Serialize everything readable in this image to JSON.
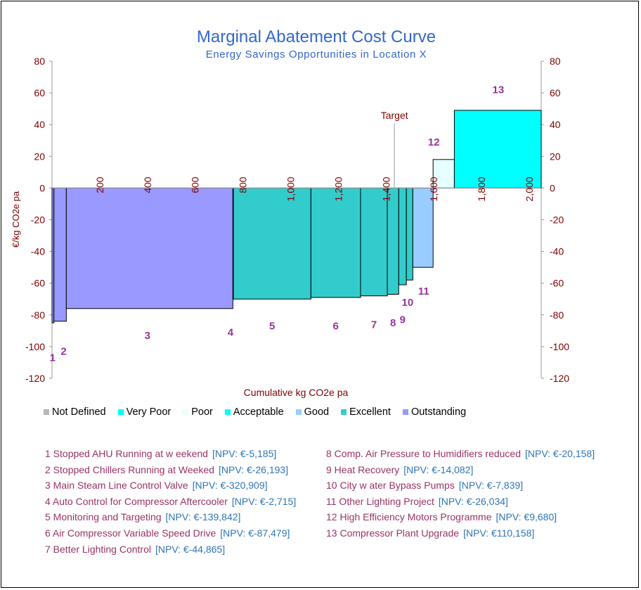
{
  "chart_data": {
    "type": "bar",
    "title": "Marginal Abatement Cost Curve",
    "subtitle": "Energy Savings Opportunities in Location X",
    "xlabel": "Cumulative kg CO2e pa",
    "ylabel": "€/kg CO2e pa",
    "ylim": [
      -120,
      80
    ],
    "xlim": [
      0,
      2050
    ],
    "y_ticks": [
      "80",
      "60",
      "40",
      "20",
      "0",
      "-20",
      "-40",
      "-60",
      "-80",
      "-100",
      "-120"
    ],
    "y_tick_values": [
      80,
      60,
      40,
      20,
      0,
      -20,
      -40,
      -60,
      -80,
      -100,
      -120
    ],
    "x_ticks": [
      "200",
      "400",
      "600",
      "800",
      "1,000",
      "1,200",
      "1,400",
      "1,600",
      "1,800",
      "2,000"
    ],
    "x_tick_values": [
      200,
      400,
      600,
      800,
      1000,
      1200,
      1400,
      1600,
      1800,
      2000
    ],
    "target": {
      "label": "Target",
      "x": 1435
    },
    "bars": [
      {
        "id": "1",
        "start": 0,
        "end": 8,
        "value": -85,
        "category": "Outstanding"
      },
      {
        "id": "2",
        "start": 8,
        "end": 60,
        "value": -84,
        "category": "Outstanding"
      },
      {
        "id": "3",
        "start": 60,
        "end": 758,
        "value": -76,
        "category": "Outstanding"
      },
      {
        "id": "4",
        "start": 758,
        "end": 760,
        "value": -70,
        "category": "Excellent"
      },
      {
        "id": "5",
        "start": 760,
        "end": 1085,
        "value": -70,
        "category": "Excellent"
      },
      {
        "id": "6",
        "start": 1085,
        "end": 1293,
        "value": -69,
        "category": "Excellent"
      },
      {
        "id": "7",
        "start": 1293,
        "end": 1405,
        "value": -68,
        "category": "Excellent"
      },
      {
        "id": "8",
        "start": 1405,
        "end": 1453,
        "value": -67,
        "category": "Excellent"
      },
      {
        "id": "9",
        "start": 1453,
        "end": 1485,
        "value": -61,
        "category": "Excellent"
      },
      {
        "id": "10",
        "start": 1485,
        "end": 1512,
        "value": -58,
        "category": "Excellent"
      },
      {
        "id": "11",
        "start": 1512,
        "end": 1597,
        "value": -50,
        "category": "Good"
      },
      {
        "id": "12",
        "start": 1597,
        "end": 1686,
        "value": 18,
        "category": "Poor"
      },
      {
        "id": "13",
        "start": 1686,
        "end": 2050,
        "value": 49,
        "category": "Acceptable"
      }
    ],
    "legend": [
      {
        "name": "Not Defined",
        "color": "#B7B7B7"
      },
      {
        "name": "Very Poor",
        "color": "#00FFFF"
      },
      {
        "name": "Poor",
        "color": "#E6FFFF"
      },
      {
        "name": "Acceptable",
        "color": "#00FFFF"
      },
      {
        "name": "Good",
        "color": "#99CCFF"
      },
      {
        "name": "Excellent",
        "color": "#33CCCC"
      },
      {
        "name": "Outstanding",
        "color": "#9999FF"
      }
    ],
    "colors": {
      "Outstanding": "#9999FF",
      "Excellent": "#33CCCC",
      "Good": "#99CCFF",
      "Poor": "#E6FFFF",
      "Acceptable": "#00FFFF",
      "title": "#3366CC",
      "axis_text": "#800000",
      "bar_label": "#993399"
    }
  },
  "projects": [
    {
      "label": "1 Stopped AHU Running at w eekend",
      "npv": "[NPV: €-5,185]"
    },
    {
      "label": "2 Stopped Chillers Running at Weeked",
      "npv": "[NPV: €-26,193]"
    },
    {
      "label": "3 Main Steam Line Control Valve",
      "npv": "[NPV: €-320,909]"
    },
    {
      "label": "4 Auto Control for Compressor Aftercooler",
      "npv": "[NPV: €-2,715]"
    },
    {
      "label": "5 Monitoring and Targeting",
      "npv": "[NPV: €-139,842]"
    },
    {
      "label": "6 Air Compressor Variable Speed Drive",
      "npv": "[NPV: €-87,479]"
    },
    {
      "label": "7 Better Lighting Control",
      "npv": "[NPV: €-44,865]"
    },
    {
      "label": "8 Comp. Air Pressure to Humidifiers reduced",
      "npv": "[NPV: €-20,158]"
    },
    {
      "label": "9 Heat Recovery",
      "npv": "[NPV: €-14,082]"
    },
    {
      "label": "10 City w ater Bypass Pumps",
      "npv": "[NPV: €-7,839]"
    },
    {
      "label": "11 Other Lighting Project",
      "npv": "[NPV: €-26,034]"
    },
    {
      "label": "12 High Efficiency Motors Programme",
      "npv": "[NPV: €9,680]"
    },
    {
      "label": "13 Compressor Plant Upgrade",
      "npv": "[NPV: €110,158]"
    }
  ]
}
